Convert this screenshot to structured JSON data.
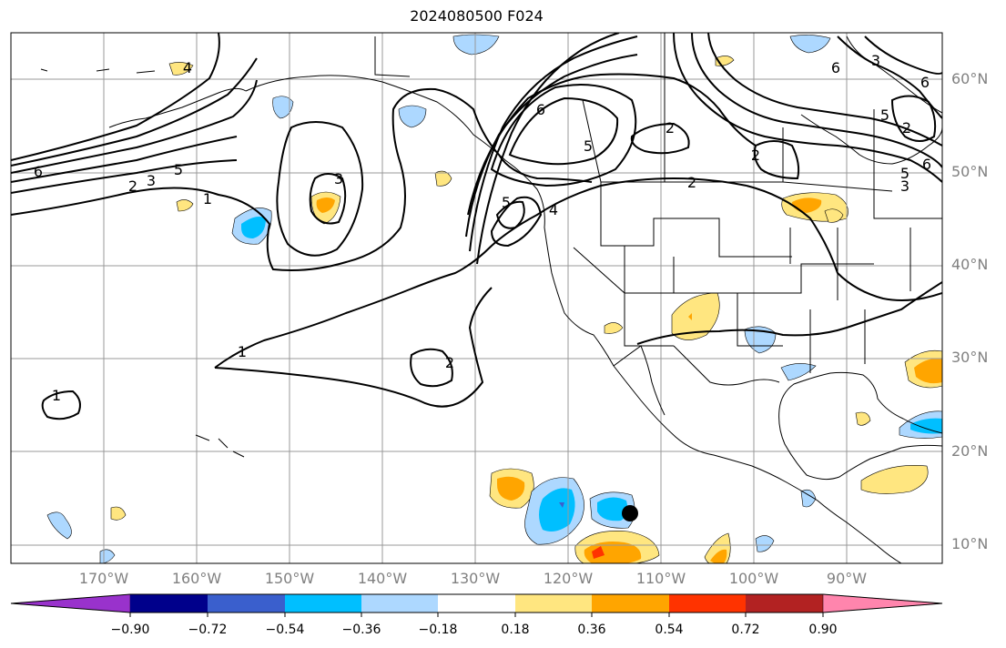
{
  "title": "2024080500 F024",
  "lat_labels": [
    "60°N",
    "50°N",
    "40°N",
    "30°N",
    "20°N",
    "10°N"
  ],
  "lon_labels": [
    "170°W",
    "160°W",
    "150°W",
    "140°W",
    "130°W",
    "120°W",
    "110°W",
    "100°W",
    "90°W"
  ],
  "colorbar": {
    "labels": [
      "−0.90",
      "−0.72",
      "−0.54",
      "−0.36",
      "−0.18",
      "0.18",
      "0.36",
      "0.54",
      "0.72",
      "0.90"
    ],
    "colors": [
      "#9932cc",
      "#00008b",
      "#3a5fcd",
      "#00bfff",
      "#add8ff",
      "#ffffff",
      "#ffe680",
      "#ffa500",
      "#ff3300",
      "#b22222",
      "#ff85ad"
    ]
  },
  "contour_labels": [
    "1",
    "2",
    "3",
    "4",
    "5",
    "6"
  ],
  "map_contour_labels": [
    {
      "text": "6"
    },
    {
      "text": "5"
    },
    {
      "text": "3"
    },
    {
      "text": "2"
    },
    {
      "text": "1"
    },
    {
      "text": "4"
    },
    {
      "text": "3"
    },
    {
      "text": "6"
    },
    {
      "text": "5"
    },
    {
      "text": "2"
    },
    {
      "text": "2"
    },
    {
      "text": "2"
    },
    {
      "text": "5"
    },
    {
      "text": "4"
    },
    {
      "text": "1"
    },
    {
      "text": "2"
    },
    {
      "text": "1"
    },
    {
      "text": "3"
    },
    {
      "text": "6"
    },
    {
      "text": "5"
    },
    {
      "text": "3"
    },
    {
      "text": "6"
    },
    {
      "text": "6"
    },
    {
      "text": "2"
    },
    {
      "text": "5"
    }
  ]
}
